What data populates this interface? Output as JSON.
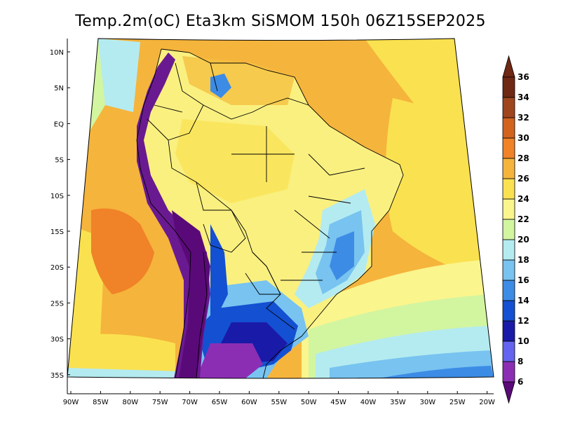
{
  "title": "Temp.2m(oC) Eta3km SiSMOM 150h 06Z15SEP2025",
  "lat_ticks": [
    "10N",
    "5N",
    "EQ",
    "5S",
    "10S",
    "15S",
    "20S",
    "25S",
    "30S",
    "35S"
  ],
  "lon_ticks": [
    "90W",
    "85W",
    "80W",
    "75W",
    "70W",
    "65W",
    "60W",
    "55W",
    "50W",
    "45W",
    "40W",
    "35W",
    "30W",
    "25W",
    "20W"
  ],
  "colorbar": {
    "labels": [
      "6",
      "8",
      "10",
      "12",
      "14",
      "16",
      "18",
      "20",
      "22",
      "24",
      "26",
      "28",
      "30",
      "32",
      "34",
      "36"
    ],
    "colors": [
      "#5a0a78",
      "#8c2eb4",
      "#6464f0",
      "#1a1aa8",
      "#1450d2",
      "#3c8ce6",
      "#78c3f0",
      "#b4ebf0",
      "#d2f5a0",
      "#faf58c",
      "#fae150",
      "#f5b43c",
      "#f08228",
      "#d2641e",
      "#a0461e",
      "#6e2814"
    ]
  },
  "colors": {
    "ocean": "#f5c040",
    "ocean_north": "#fae150",
    "ocean_cool": "#78c3f0",
    "land_warm": "#faf080",
    "andes": "#6a1a90"
  }
}
